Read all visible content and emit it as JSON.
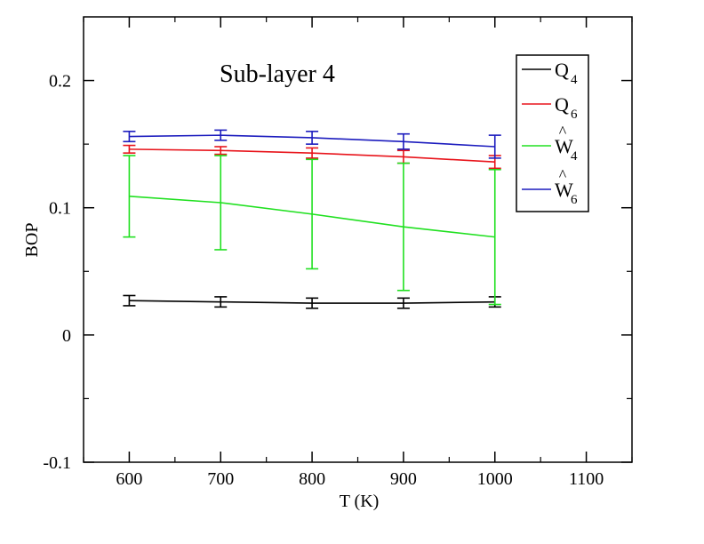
{
  "chart_data": {
    "type": "line",
    "title": "",
    "annotation": "Sub-layer 4",
    "xlabel": "T (K)",
    "ylabel": "BOP",
    "xlim": [
      550,
      1150
    ],
    "ylim": [
      -0.1,
      0.25
    ],
    "xticks": [
      "600",
      "700",
      "800",
      "900",
      "1000",
      "1100"
    ],
    "yticks": [
      "-0.1",
      "0",
      "0.1",
      "0.2"
    ],
    "grid": false,
    "legend_position": "top-right",
    "x": [
      600,
      700,
      800,
      900,
      1000
    ],
    "series": [
      {
        "name": "Q4",
        "label_main": "Q",
        "label_sub": "4",
        "hat": false,
        "color": "#000000",
        "values": [
          0.027,
          0.026,
          0.025,
          0.025,
          0.026
        ],
        "errors": [
          0.004,
          0.004,
          0.004,
          0.004,
          0.004
        ]
      },
      {
        "name": "Q6",
        "label_main": "Q",
        "label_sub": "6",
        "hat": false,
        "color": "#e8141b",
        "values": [
          0.146,
          0.145,
          0.143,
          0.14,
          0.136
        ],
        "errors": [
          0.003,
          0.003,
          0.004,
          0.005,
          0.005
        ]
      },
      {
        "name": "Ŵ4",
        "label_main": "W",
        "label_sub": "4",
        "hat": true,
        "color": "#20e020",
        "values": [
          0.109,
          0.104,
          0.095,
          0.085,
          0.077
        ],
        "errors": [
          0.032,
          0.037,
          0.043,
          0.05,
          0.053
        ]
      },
      {
        "name": "Ŵ6",
        "label_main": "W",
        "label_sub": "6",
        "hat": true,
        "color": "#1c1cbe",
        "values": [
          0.156,
          0.157,
          0.155,
          0.152,
          0.148
        ],
        "errors": [
          0.004,
          0.004,
          0.005,
          0.006,
          0.009
        ]
      }
    ]
  }
}
